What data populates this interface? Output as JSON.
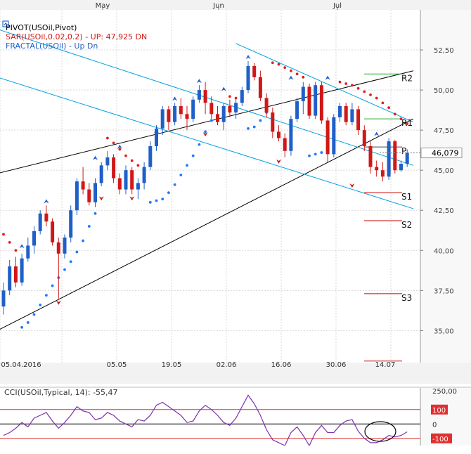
{
  "chart_data": {
    "type": "candlestick",
    "instrument": "USOil",
    "top_months": [
      "May",
      "Jun",
      "Jul"
    ],
    "date_labels": [
      "05.04.2016",
      "05.05",
      "19.05",
      "02.06",
      "16.06",
      "30.06",
      "14.07"
    ],
    "legend": {
      "pivot": "PIVOT(USOil,Pivot)",
      "sar": "SAR(USOil,0.02,0.2)  -  UP: 47,925  DN",
      "fractal": "FRACTAL(USOil)  -  Up  Dn"
    },
    "price_axis": {
      "ylim": [
        33.0,
        55.0
      ],
      "ticks": [
        35.0,
        37.5,
        40.0,
        42.5,
        45.0,
        47.5,
        50.0,
        52.5
      ],
      "tick_labels": [
        "35,00",
        "37,50",
        "40,00",
        "42,50",
        "45,00",
        "47,50",
        "50,00",
        "52,50"
      ]
    },
    "current_price": {
      "value": 46.079,
      "label": "46,079"
    },
    "pivot_levels": [
      {
        "name": "R2",
        "value": 51.0
      },
      {
        "name": "R1",
        "value": 48.2
      },
      {
        "name": "P",
        "value": 46.45
      },
      {
        "name": "S1",
        "value": 43.6
      },
      {
        "name": "S2",
        "value": 41.85
      },
      {
        "name": "S3",
        "value": 37.3
      },
      {
        "name": "",
        "value": 33.1
      }
    ],
    "candles": [
      {
        "o": 36.5,
        "h": 38.0,
        "l": 36.0,
        "c": 37.5
      },
      {
        "o": 37.5,
        "h": 39.4,
        "l": 37.2,
        "c": 39.0
      },
      {
        "o": 39.0,
        "h": 39.6,
        "l": 37.7,
        "c": 38.0
      },
      {
        "o": 38.0,
        "h": 39.8,
        "l": 37.8,
        "c": 39.5
      },
      {
        "o": 39.5,
        "h": 40.8,
        "l": 39.3,
        "c": 40.3
      },
      {
        "o": 40.3,
        "h": 41.5,
        "l": 39.8,
        "c": 41.2
      },
      {
        "o": 41.2,
        "h": 42.5,
        "l": 41.0,
        "c": 42.3
      },
      {
        "o": 42.3,
        "h": 42.8,
        "l": 41.5,
        "c": 41.8
      },
      {
        "o": 41.8,
        "h": 42.0,
        "l": 40.3,
        "c": 40.5
      },
      {
        "o": 40.5,
        "h": 40.8,
        "l": 37.0,
        "c": 39.8
      },
      {
        "o": 39.8,
        "h": 41.0,
        "l": 39.5,
        "c": 40.8
      },
      {
        "o": 40.8,
        "h": 42.8,
        "l": 40.5,
        "c": 42.5
      },
      {
        "o": 42.5,
        "h": 44.5,
        "l": 42.2,
        "c": 44.3
      },
      {
        "o": 44.3,
        "h": 45.2,
        "l": 43.5,
        "c": 43.8
      },
      {
        "o": 43.8,
        "h": 44.2,
        "l": 42.8,
        "c": 43.0
      },
      {
        "o": 43.0,
        "h": 44.5,
        "l": 42.7,
        "c": 44.2
      },
      {
        "o": 44.2,
        "h": 45.5,
        "l": 44.0,
        "c": 45.3
      },
      {
        "o": 45.3,
        "h": 46.2,
        "l": 45.0,
        "c": 45.8
      },
      {
        "o": 45.8,
        "h": 46.0,
        "l": 44.2,
        "c": 44.5
      },
      {
        "o": 44.5,
        "h": 44.8,
        "l": 43.5,
        "c": 43.8
      },
      {
        "o": 43.8,
        "h": 45.3,
        "l": 43.5,
        "c": 45.0
      },
      {
        "o": 45.0,
        "h": 45.2,
        "l": 43.5,
        "c": 43.8
      },
      {
        "o": 43.8,
        "h": 44.5,
        "l": 43.2,
        "c": 44.2
      },
      {
        "o": 44.2,
        "h": 45.5,
        "l": 43.8,
        "c": 45.2
      },
      {
        "o": 45.2,
        "h": 46.8,
        "l": 45.0,
        "c": 46.5
      },
      {
        "o": 46.5,
        "h": 47.8,
        "l": 46.2,
        "c": 47.6
      },
      {
        "o": 47.6,
        "h": 49.0,
        "l": 47.2,
        "c": 48.8
      },
      {
        "o": 48.8,
        "h": 49.0,
        "l": 47.5,
        "c": 48.0
      },
      {
        "o": 48.0,
        "h": 49.2,
        "l": 47.8,
        "c": 49.0
      },
      {
        "o": 49.0,
        "h": 49.5,
        "l": 48.2,
        "c": 48.5
      },
      {
        "o": 48.5,
        "h": 49.0,
        "l": 47.5,
        "c": 48.2
      },
      {
        "o": 48.2,
        "h": 49.6,
        "l": 48.0,
        "c": 49.4
      },
      {
        "o": 49.4,
        "h": 50.3,
        "l": 49.2,
        "c": 50.0
      },
      {
        "o": 50.0,
        "h": 50.5,
        "l": 48.5,
        "c": 49.2
      },
      {
        "o": 49.2,
        "h": 49.6,
        "l": 48.2,
        "c": 48.5
      },
      {
        "o": 48.5,
        "h": 49.0,
        "l": 47.8,
        "c": 48.0
      },
      {
        "o": 48.0,
        "h": 49.2,
        "l": 47.5,
        "c": 49.0
      },
      {
        "o": 49.0,
        "h": 49.4,
        "l": 48.3,
        "c": 48.6
      },
      {
        "o": 48.6,
        "h": 49.5,
        "l": 48.2,
        "c": 49.2
      },
      {
        "o": 49.2,
        "h": 50.2,
        "l": 49.0,
        "c": 50.0
      },
      {
        "o": 50.0,
        "h": 51.8,
        "l": 49.8,
        "c": 51.5
      },
      {
        "o": 51.5,
        "h": 51.7,
        "l": 50.6,
        "c": 50.8
      },
      {
        "o": 50.8,
        "h": 51.2,
        "l": 49.3,
        "c": 49.5
      },
      {
        "o": 49.5,
        "h": 49.8,
        "l": 48.3,
        "c": 48.6
      },
      {
        "o": 48.6,
        "h": 48.9,
        "l": 47.0,
        "c": 47.4
      },
      {
        "o": 47.4,
        "h": 47.8,
        "l": 46.8,
        "c": 47.0
      },
      {
        "o": 47.0,
        "h": 47.3,
        "l": 45.8,
        "c": 46.2
      },
      {
        "o": 46.2,
        "h": 48.4,
        "l": 45.9,
        "c": 48.2
      },
      {
        "o": 48.2,
        "h": 49.5,
        "l": 48.0,
        "c": 49.3
      },
      {
        "o": 49.3,
        "h": 50.5,
        "l": 48.5,
        "c": 50.2
      },
      {
        "o": 50.2,
        "h": 50.4,
        "l": 48.2,
        "c": 48.4
      },
      {
        "o": 48.4,
        "h": 50.5,
        "l": 48.2,
        "c": 50.3
      },
      {
        "o": 50.3,
        "h": 50.5,
        "l": 47.9,
        "c": 48.1
      },
      {
        "o": 48.1,
        "h": 48.3,
        "l": 45.5,
        "c": 46.0
      },
      {
        "o": 46.0,
        "h": 48.5,
        "l": 45.8,
        "c": 48.3
      },
      {
        "o": 48.3,
        "h": 49.2,
        "l": 48.0,
        "c": 49.0
      },
      {
        "o": 49.0,
        "h": 49.2,
        "l": 47.8,
        "c": 48.0
      },
      {
        "o": 48.0,
        "h": 49.2,
        "l": 47.8,
        "c": 48.8
      },
      {
        "o": 48.8,
        "h": 49.0,
        "l": 47.2,
        "c": 47.5
      },
      {
        "o": 47.5,
        "h": 47.8,
        "l": 46.2,
        "c": 46.5
      },
      {
        "o": 46.5,
        "h": 46.8,
        "l": 44.8,
        "c": 45.2
      },
      {
        "o": 45.2,
        "h": 45.6,
        "l": 44.6,
        "c": 45.0
      },
      {
        "o": 45.0,
        "h": 45.5,
        "l": 44.3,
        "c": 44.6
      },
      {
        "o": 44.6,
        "h": 47.0,
        "l": 44.4,
        "c": 46.8
      },
      {
        "o": 46.8,
        "h": 46.9,
        "l": 44.8,
        "c": 45.0
      },
      {
        "o": 45.0,
        "h": 45.6,
        "l": 44.9,
        "c": 45.4
      },
      {
        "o": 45.4,
        "h": 46.3,
        "l": 45.2,
        "c": 46.08
      }
    ],
    "sar": {
      "color": "#e02020",
      "support_color": "#1e78ff",
      "points": [
        {
          "i": 0,
          "v": 41.0,
          "d": "dn"
        },
        {
          "i": 1,
          "v": 40.5,
          "d": "dn"
        },
        {
          "i": 2,
          "v": 40.0,
          "d": "dn"
        },
        {
          "i": 3,
          "v": 35.2,
          "d": "up"
        },
        {
          "i": 4,
          "v": 35.5,
          "d": "up"
        },
        {
          "i": 5,
          "v": 36.0,
          "d": "up"
        },
        {
          "i": 6,
          "v": 36.6,
          "d": "up"
        },
        {
          "i": 7,
          "v": 37.2,
          "d": "up"
        },
        {
          "i": 8,
          "v": 37.8,
          "d": "up"
        },
        {
          "i": 9,
          "v": 38.3,
          "d": "up"
        },
        {
          "i": 10,
          "v": 38.8,
          "d": "up"
        },
        {
          "i": 11,
          "v": 39.3,
          "d": "up"
        },
        {
          "i": 12,
          "v": 39.9,
          "d": "up"
        },
        {
          "i": 13,
          "v": 40.6,
          "d": "up"
        },
        {
          "i": 14,
          "v": 41.5,
          "d": "up"
        },
        {
          "i": 15,
          "v": 42.3,
          "d": "up"
        },
        {
          "i": 17,
          "v": 47.0,
          "d": "dn"
        },
        {
          "i": 18,
          "v": 46.7,
          "d": "dn"
        },
        {
          "i": 19,
          "v": 46.3,
          "d": "dn"
        },
        {
          "i": 20,
          "v": 45.9,
          "d": "dn"
        },
        {
          "i": 21,
          "v": 45.6,
          "d": "dn"
        },
        {
          "i": 22,
          "v": 45.3,
          "d": "dn"
        },
        {
          "i": 23,
          "v": 45.1,
          "d": "dn"
        },
        {
          "i": 24,
          "v": 43.0,
          "d": "up"
        },
        {
          "i": 25,
          "v": 43.1,
          "d": "up"
        },
        {
          "i": 26,
          "v": 43.2,
          "d": "up"
        },
        {
          "i": 27,
          "v": 43.6,
          "d": "up"
        },
        {
          "i": 28,
          "v": 44.1,
          "d": "up"
        },
        {
          "i": 29,
          "v": 44.7,
          "d": "up"
        },
        {
          "i": 30,
          "v": 45.3,
          "d": "up"
        },
        {
          "i": 31,
          "v": 45.9,
          "d": "up"
        },
        {
          "i": 32,
          "v": 46.6,
          "d": "up"
        },
        {
          "i": 33,
          "v": 47.4,
          "d": "up"
        },
        {
          "i": 34,
          "v": 48.1,
          "d": "up"
        },
        {
          "i": 35,
          "v": 48.2,
          "d": "up"
        },
        {
          "i": 36,
          "v": 48.4,
          "d": "up"
        },
        {
          "i": 37,
          "v": 49.6,
          "d": "dn"
        },
        {
          "i": 38,
          "v": 49.5,
          "d": "dn"
        },
        {
          "i": 39,
          "v": 49.5,
          "d": "dn"
        },
        {
          "i": 40,
          "v": 47.6,
          "d": "up"
        },
        {
          "i": 41,
          "v": 47.7,
          "d": "up"
        },
        {
          "i": 42,
          "v": 48.1,
          "d": "up"
        },
        {
          "i": 43,
          "v": 48.6,
          "d": "up"
        },
        {
          "i": 44,
          "v": 51.7,
          "d": "dn"
        },
        {
          "i": 45,
          "v": 51.6,
          "d": "dn"
        },
        {
          "i": 46,
          "v": 51.4,
          "d": "dn"
        },
        {
          "i": 47,
          "v": 51.2,
          "d": "dn"
        },
        {
          "i": 48,
          "v": 51.0,
          "d": "dn"
        },
        {
          "i": 49,
          "v": 50.8,
          "d": "dn"
        },
        {
          "i": 50,
          "v": 45.9,
          "d": "up"
        },
        {
          "i": 51,
          "v": 46.0,
          "d": "up"
        },
        {
          "i": 52,
          "v": 46.1,
          "d": "up"
        },
        {
          "i": 53,
          "v": 46.3,
          "d": "up"
        },
        {
          "i": 54,
          "v": 46.5,
          "d": "up"
        },
        {
          "i": 55,
          "v": 50.5,
          "d": "dn"
        },
        {
          "i": 56,
          "v": 50.4,
          "d": "dn"
        },
        {
          "i": 57,
          "v": 50.3,
          "d": "dn"
        },
        {
          "i": 58,
          "v": 50.1,
          "d": "dn"
        },
        {
          "i": 59,
          "v": 49.9,
          "d": "dn"
        },
        {
          "i": 60,
          "v": 49.7,
          "d": "dn"
        },
        {
          "i": 61,
          "v": 49.5,
          "d": "dn"
        },
        {
          "i": 62,
          "v": 49.2,
          "d": "dn"
        },
        {
          "i": 63,
          "v": 48.9,
          "d": "dn"
        },
        {
          "i": 64,
          "v": 48.5,
          "d": "dn"
        },
        {
          "i": 65,
          "v": 48.2,
          "d": "dn"
        },
        {
          "i": 66,
          "v": 47.9,
          "d": "dn"
        }
      ]
    },
    "fractals": {
      "up": [
        {
          "i": 3,
          "v": 40.0
        },
        {
          "i": 7,
          "v": 42.8
        },
        {
          "i": 15,
          "v": 45.5
        },
        {
          "i": 19,
          "v": 46.2
        },
        {
          "i": 25,
          "v": 47.2
        },
        {
          "i": 28,
          "v": 49.2
        },
        {
          "i": 32,
          "v": 50.3
        },
        {
          "i": 36,
          "v": 49.8
        },
        {
          "i": 40,
          "v": 51.8
        },
        {
          "i": 47,
          "v": 50.5
        },
        {
          "i": 53,
          "v": 50.5
        },
        {
          "i": 61,
          "v": 47.0
        }
      ],
      "down": [
        {
          "i": 9,
          "v": 37.0
        },
        {
          "i": 16,
          "v": 43.5
        },
        {
          "i": 21,
          "v": 43.5
        },
        {
          "i": 33,
          "v": 47.5
        },
        {
          "i": 45,
          "v": 45.8
        },
        {
          "i": 57,
          "v": 44.3
        }
      ]
    },
    "channels": [
      {
        "color": "#000000",
        "from": {
          "i": -1,
          "v": 44.8
        },
        "to": {
          "i": 67,
          "v": 51.2
        }
      },
      {
        "color": "#000000",
        "from": {
          "i": -1,
          "v": 35.0
        },
        "to": {
          "i": 67,
          "v": 48.2
        }
      },
      {
        "color": "#00a0e0",
        "from": {
          "i": -1,
          "v": 53.8
        },
        "to": {
          "i": 67,
          "v": 45.3
        }
      },
      {
        "color": "#00a0e0",
        "from": {
          "i": -1,
          "v": 50.8
        },
        "to": {
          "i": 67,
          "v": 42.6
        }
      },
      {
        "color": "#00a0e0",
        "from": {
          "i": 38,
          "v": 52.9
        },
        "to": {
          "i": 67,
          "v": 48.0
        }
      }
    ],
    "cci": {
      "label": "CCI(USOil,Typical, 14): -55,47",
      "ylim": [
        -150,
        250
      ],
      "ticks": [
        {
          "value": 250,
          "label": "250,00"
        },
        {
          "value": 100,
          "label": "100"
        },
        {
          "value": 0,
          "label": "0"
        },
        {
          "value": -100,
          "label": "-100"
        }
      ],
      "values": [
        -80,
        -60,
        -30,
        10,
        -20,
        40,
        60,
        80,
        20,
        -30,
        10,
        60,
        120,
        90,
        80,
        30,
        40,
        80,
        60,
        20,
        0,
        -20,
        30,
        20,
        60,
        130,
        150,
        120,
        90,
        60,
        10,
        20,
        90,
        130,
        100,
        60,
        10,
        -10,
        40,
        120,
        200,
        140,
        60,
        -40,
        -110,
        -130,
        -150,
        -60,
        -20,
        -80,
        -150,
        -60,
        -10,
        -60,
        -60,
        -10,
        20,
        30,
        -50,
        -100,
        -130,
        -130,
        -110,
        -80,
        -90,
        -80,
        -55
      ]
    }
  }
}
